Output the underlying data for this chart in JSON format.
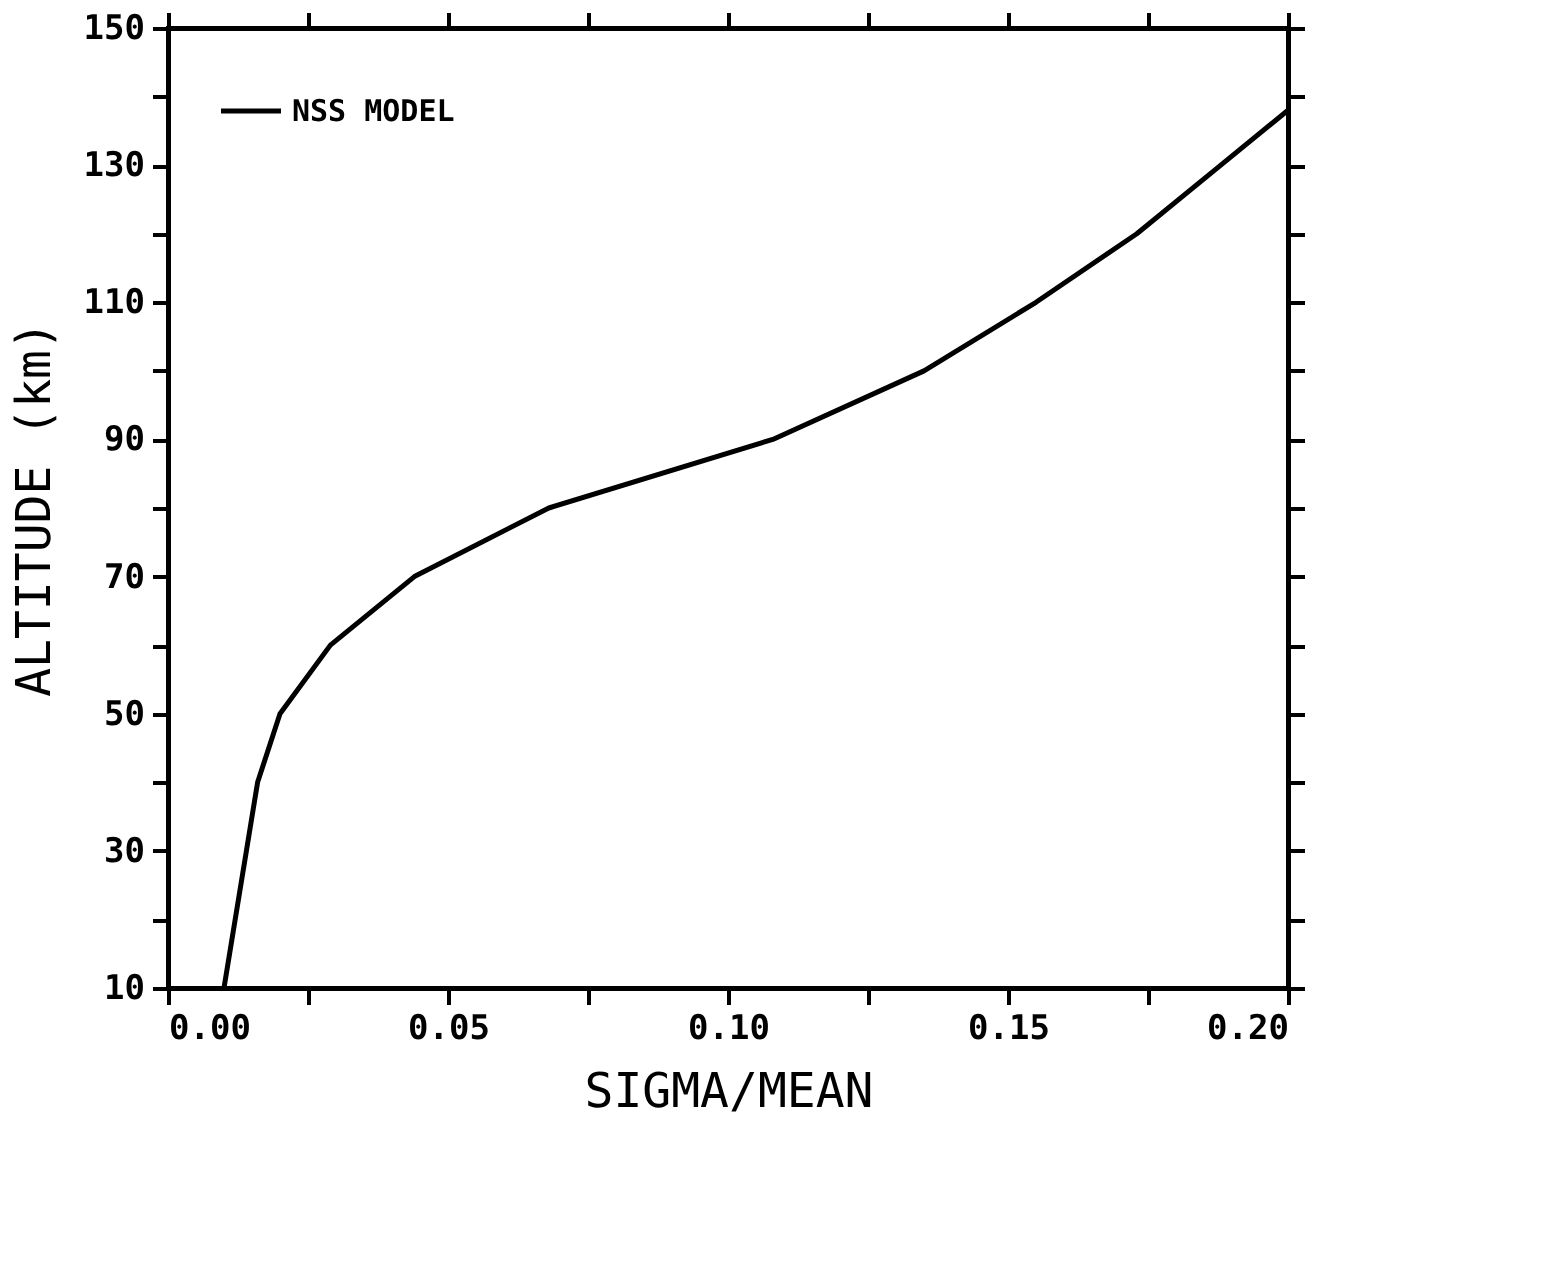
{
  "chart_data": {
    "type": "line",
    "xlabel": "SIGMA/MEAN",
    "ylabel": "ALTITUDE (km)",
    "x": [
      0.01,
      0.012,
      0.014,
      0.016,
      0.02,
      0.029,
      0.044,
      0.068,
      0.108,
      0.135,
      0.155,
      0.173,
      0.188,
      0.2
    ],
    "series": [
      {
        "name": "NSS MODEL",
        "color": "#000000",
        "values": [
          10,
          20,
          30,
          40,
          50,
          60,
          70,
          80,
          90,
          100,
          110,
          120,
          130,
          138
        ]
      }
    ],
    "xlim": [
      0,
      0.2
    ],
    "ylim": [
      10,
      150
    ],
    "xticks": [
      {
        "value": 0,
        "label": "0.00"
      },
      {
        "value": 0.025,
        "label": null
      },
      {
        "value": 0.05,
        "label": "0.05"
      },
      {
        "value": 0.075,
        "label": null
      },
      {
        "value": 0.1,
        "label": "0.10"
      },
      {
        "value": 0.125,
        "label": null
      },
      {
        "value": 0.15,
        "label": "0.15"
      },
      {
        "value": 0.175,
        "label": null
      },
      {
        "value": 0.2,
        "label": "0.20"
      }
    ],
    "yticks": [
      10,
      {
        "value": 20,
        "label": null
      },
      30,
      {
        "value": 40,
        "label": null
      },
      50,
      {
        "value": 60,
        "label": null
      },
      70,
      {
        "value": 80,
        "label": null
      },
      90,
      {
        "value": 100,
        "label": null
      },
      110,
      {
        "value": 120,
        "label": null
      },
      130,
      {
        "value": 140,
        "label": null
      },
      150
    ],
    "legend": "top left",
    "grid": false,
    "marker": "none",
    "line_style": "solid"
  }
}
